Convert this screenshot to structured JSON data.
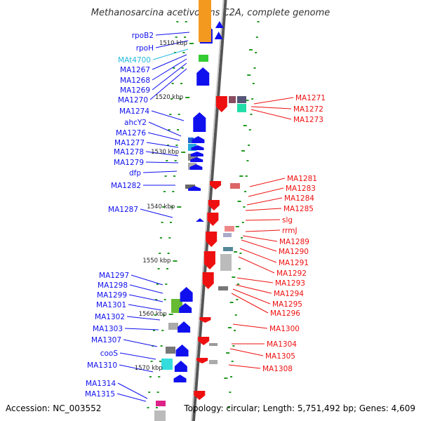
{
  "title": "Methanosarcina acetivorans C2A, complete genome",
  "footer": {
    "accession": "Accession: NC_003552",
    "topology": "Topology: circular; Length: 5,751,492 bp; Genes: 4,609"
  },
  "colors": {
    "forward_gene": "#1010ee",
    "reverse_gene": "#ee1010",
    "rna_gene": "#22bbdd",
    "backbone": "#888888",
    "tick": "#229922"
  },
  "kbp_ticks": [
    "1510 kbp",
    "1520 kbp",
    "1530 kbp",
    "1540 kbp",
    "1550 kbp",
    "1560 kbp",
    "1570 kbp"
  ],
  "left_labels": [
    "rpoB2",
    "rpoH",
    "MAt4700",
    "MA1267",
    "MA1268",
    "MA1269",
    "MA1270",
    "MA1274",
    "ahcY2",
    "MA1276",
    "MA1277",
    "MA1278",
    "MA1279",
    "dfp",
    "MA1282",
    "MA1287",
    "MA1297",
    "MA1298",
    "MA1299",
    "MA1301",
    "MA1302",
    "MA1303",
    "MA1307",
    "cooS",
    "MA1310",
    "MA1314",
    "MA1315"
  ],
  "right_labels": [
    "MA1271",
    "MA1272",
    "MA1273",
    "MA1281",
    "MA1283",
    "MA1284",
    "MA1285",
    "slg",
    "rrmJ",
    "MA1289",
    "MA1290",
    "MA1291",
    "MA1292",
    "MA1293",
    "MA1294",
    "MA1295",
    "MA1296",
    "MA1300",
    "MA1304",
    "MA1305",
    "MA1308"
  ]
}
